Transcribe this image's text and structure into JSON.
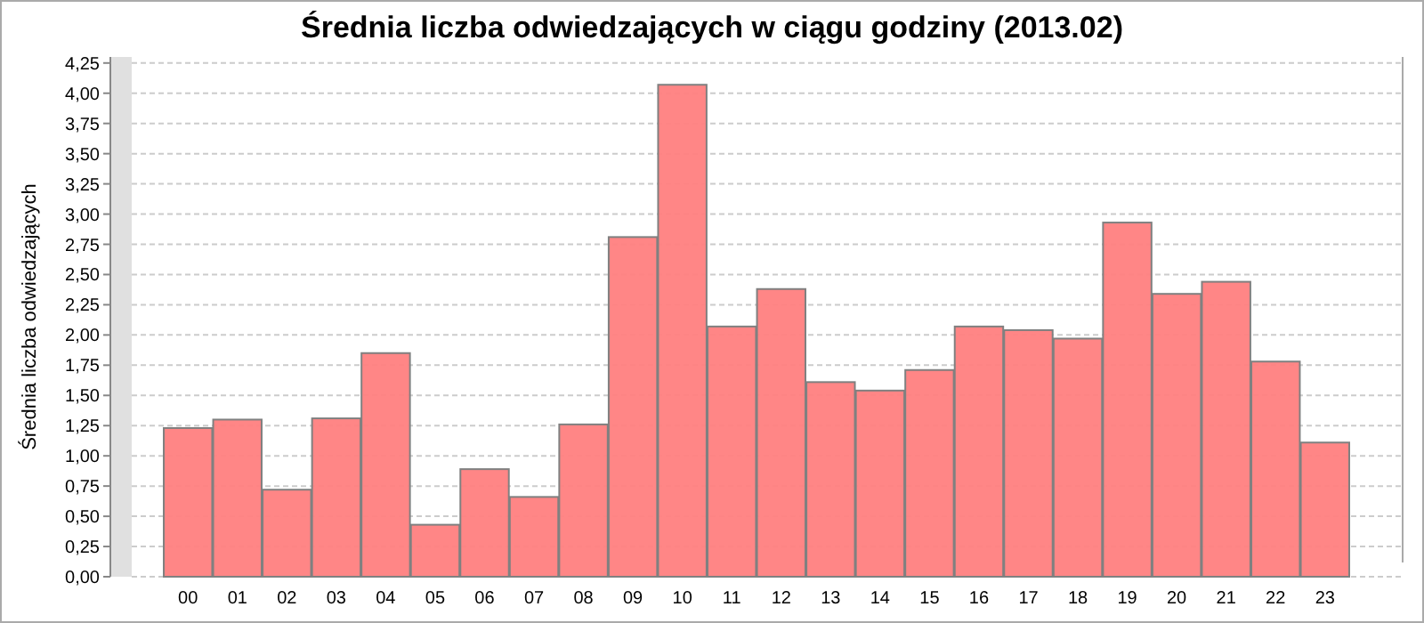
{
  "chart_data": {
    "type": "bar",
    "title": "Średnia liczba odwiedzających w ciągu godziny (2013.02)",
    "ylabel": "Średnia liczba odwiedzających",
    "categories": [
      "00",
      "01",
      "02",
      "03",
      "04",
      "05",
      "06",
      "07",
      "08",
      "09",
      "10",
      "11",
      "12",
      "13",
      "14",
      "15",
      "16",
      "17",
      "18",
      "19",
      "20",
      "21",
      "22",
      "23"
    ],
    "values": [
      1.23,
      1.3,
      0.72,
      1.31,
      1.85,
      0.43,
      0.89,
      0.66,
      1.26,
      2.81,
      4.07,
      2.07,
      2.38,
      1.61,
      1.54,
      1.71,
      2.07,
      2.04,
      1.97,
      2.93,
      2.34,
      2.44,
      1.78,
      1.11
    ],
    "color": "#ff8080",
    "ylim": [
      0,
      4.3
    ],
    "yticks": [
      {
        "value": 0,
        "label": "0,00"
      },
      {
        "value": 0.25,
        "label": "0,25"
      },
      {
        "value": 0.5,
        "label": "0,50"
      },
      {
        "value": 0.75,
        "label": "0,75"
      },
      {
        "value": 1,
        "label": "1,00"
      },
      {
        "value": 1.25,
        "label": "1,25"
      },
      {
        "value": 1.5,
        "label": "1,50"
      },
      {
        "value": 1.75,
        "label": "1,75"
      },
      {
        "value": 2,
        "label": "2,00"
      },
      {
        "value": 2.25,
        "label": "2,25"
      },
      {
        "value": 2.5,
        "label": "2,50"
      },
      {
        "value": 2.75,
        "label": "2,75"
      },
      {
        "value": 3,
        "label": "3,00"
      },
      {
        "value": 3.25,
        "label": "3,25"
      },
      {
        "value": 3.5,
        "label": "3,50"
      },
      {
        "value": 3.75,
        "label": "3,75"
      },
      {
        "value": 4,
        "label": "4,00"
      },
      {
        "value": 4.25,
        "label": "4,25"
      }
    ],
    "grid": "y"
  }
}
